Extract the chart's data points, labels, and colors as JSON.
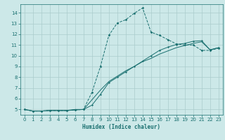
{
  "title": "",
  "xlabel": "Humidex (Indice chaleur)",
  "xlim": [
    -0.5,
    23.5
  ],
  "ylim": [
    4.5,
    14.8
  ],
  "xticks": [
    0,
    1,
    2,
    3,
    4,
    5,
    6,
    7,
    8,
    9,
    10,
    11,
    12,
    13,
    14,
    15,
    16,
    17,
    18,
    19,
    20,
    21,
    22,
    23
  ],
  "yticks": [
    5,
    6,
    7,
    8,
    9,
    10,
    11,
    12,
    13,
    14
  ],
  "bg_color": "#cce8e8",
  "grid_color": "#aacccc",
  "line_color": "#1a7070",
  "line1_x": [
    0,
    1,
    2,
    3,
    4,
    5,
    6,
    7,
    8,
    9,
    10,
    11,
    12,
    13,
    14,
    15,
    16,
    17,
    18,
    19,
    20,
    21,
    22,
    23
  ],
  "line1_y": [
    5.0,
    4.85,
    4.85,
    4.9,
    4.9,
    4.9,
    4.95,
    5.0,
    6.6,
    9.0,
    11.9,
    13.05,
    13.35,
    13.95,
    14.45,
    12.2,
    11.9,
    11.5,
    11.1,
    11.0,
    11.0,
    10.5,
    10.5,
    10.7
  ],
  "line2_x": [
    0,
    1,
    2,
    3,
    4,
    5,
    6,
    7,
    8,
    9,
    10,
    11,
    12,
    13,
    14,
    15,
    16,
    17,
    18,
    19,
    20,
    21,
    22,
    23
  ],
  "line2_y": [
    5.0,
    4.85,
    4.85,
    4.9,
    4.9,
    4.9,
    4.95,
    5.0,
    5.4,
    6.4,
    7.5,
    8.0,
    8.5,
    9.0,
    9.5,
    10.0,
    10.5,
    10.8,
    11.05,
    11.15,
    11.35,
    11.4,
    10.55,
    10.75
  ],
  "line3_x": [
    0,
    1,
    2,
    3,
    4,
    5,
    6,
    7,
    8,
    9,
    10,
    11,
    12,
    13,
    14,
    15,
    16,
    17,
    18,
    19,
    20,
    21,
    22,
    23
  ],
  "line3_y": [
    5.0,
    4.85,
    4.85,
    4.9,
    4.9,
    4.9,
    5.0,
    5.0,
    5.9,
    6.8,
    7.6,
    8.1,
    8.6,
    9.0,
    9.45,
    9.75,
    10.15,
    10.45,
    10.75,
    10.95,
    11.15,
    11.3,
    10.55,
    10.75
  ]
}
